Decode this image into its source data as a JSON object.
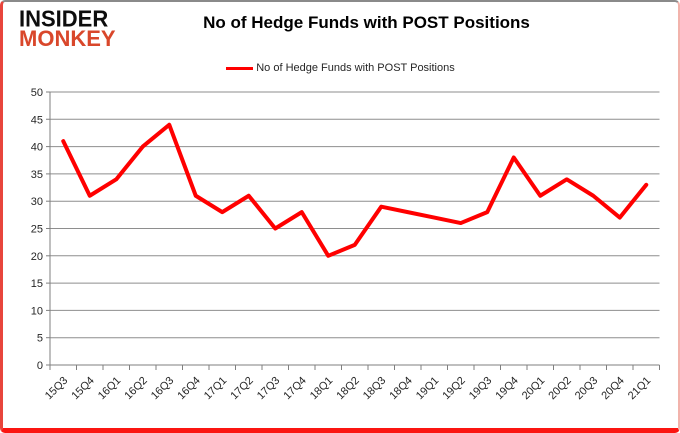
{
  "logo": {
    "line1": "INSIDER",
    "line2": "MONKEY"
  },
  "title": "No of Hedge Funds with POST Positions",
  "legend": {
    "label": "No of Hedge Funds with POST Positions",
    "swatch_color": "#FF0000"
  },
  "chart_data": {
    "type": "line",
    "title": "No of Hedge Funds with POST Positions",
    "categories": [
      "15Q3",
      "15Q4",
      "16Q1",
      "16Q2",
      "16Q3",
      "16Q4",
      "17Q1",
      "17Q2",
      "17Q3",
      "17Q4",
      "18Q1",
      "18Q2",
      "18Q3",
      "18Q4",
      "19Q1",
      "19Q2",
      "19Q3",
      "19Q4",
      "20Q1",
      "20Q2",
      "20Q3",
      "20Q4",
      "21Q1"
    ],
    "series": [
      {
        "name": "No of Hedge Funds with POST Positions",
        "color": "#FF0000",
        "values": [
          41,
          31,
          34,
          40,
          44,
          31,
          28,
          31,
          25,
          28,
          20,
          22,
          29,
          28,
          27,
          26,
          28,
          38,
          31,
          34,
          31,
          27,
          33
        ]
      }
    ],
    "xlabel": "",
    "ylabel": "",
    "ylim": [
      0,
      50
    ],
    "yticks": [
      0,
      5,
      10,
      15,
      20,
      25,
      30,
      35,
      40,
      45,
      50
    ],
    "grid": true,
    "legend_position": "top-center"
  },
  "colors": {
    "line": "#FF0000",
    "grid": "#8e8e8e",
    "axis": "#7f7f7f",
    "text": "#262626",
    "logo_monkey": "#d9472b"
  }
}
